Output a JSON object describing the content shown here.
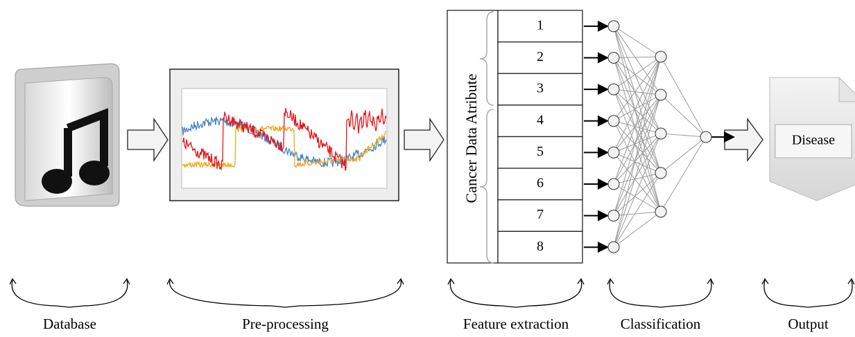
{
  "stages": [
    {
      "label": "Database"
    },
    {
      "label": "Pre-processing"
    },
    {
      "label": "Feature extraction"
    },
    {
      "label": "Classification"
    },
    {
      "label": "Output"
    }
  ],
  "feature_panel": {
    "title": "Cancer Data Atribute",
    "rows": [
      "1",
      "2",
      "3",
      "4",
      "5",
      "6",
      "7",
      "8"
    ]
  },
  "output": {
    "label": "Disease"
  }
}
